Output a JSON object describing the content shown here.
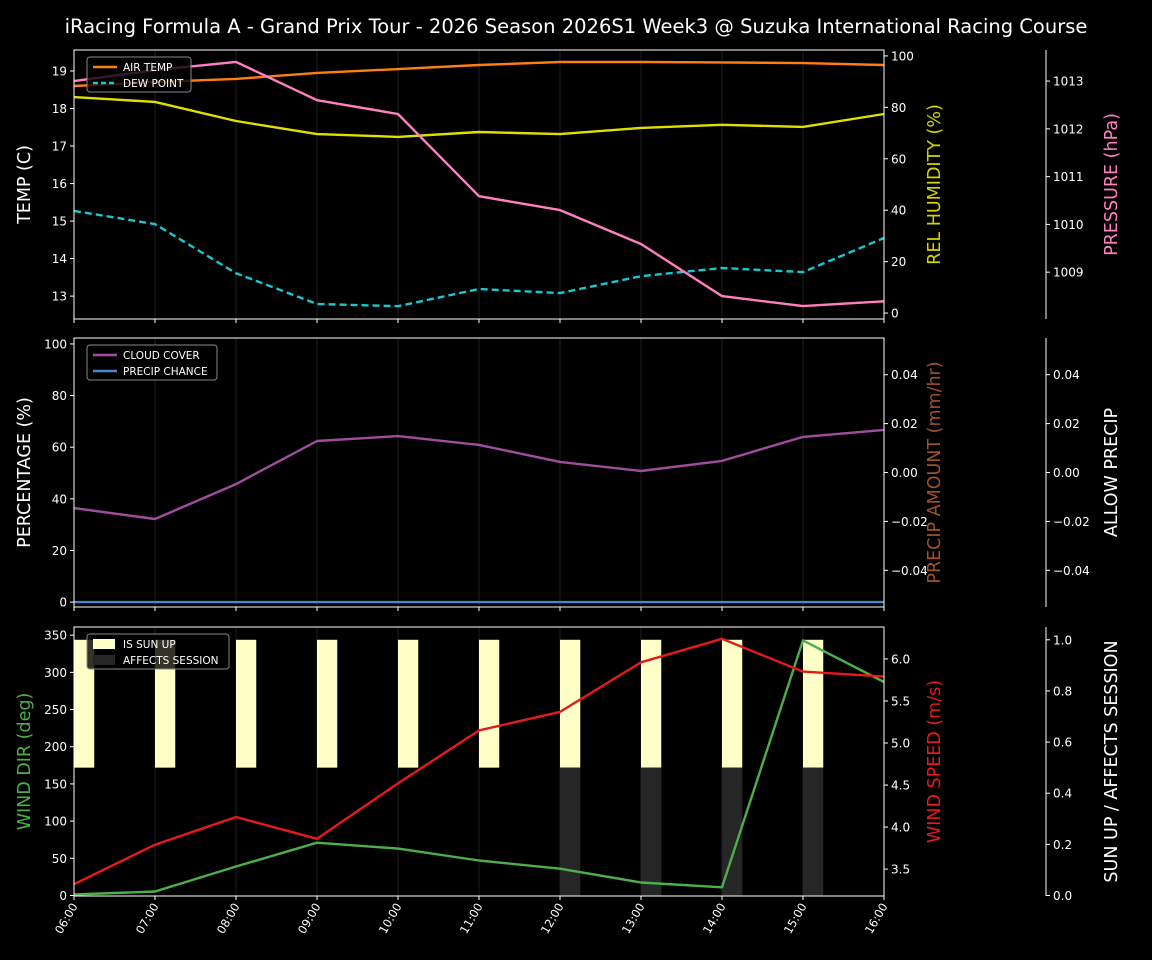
{
  "title": "iRacing Formula A - Grand Prix Tour - 2026 Season  2026S1 Week3 @ Suzuka International Racing Course",
  "chart_data": [
    {
      "type": "line",
      "x": [
        "06:00",
        "07:00",
        "08:00",
        "09:00",
        "10:00",
        "11:00",
        "12:00",
        "13:00",
        "14:00",
        "15:00",
        "16:00"
      ],
      "grid": "vertical",
      "legend": "top-left",
      "axes": {
        "left": {
          "label": "TEMP (C)",
          "ticks": [
            13,
            14,
            15,
            16,
            17,
            18,
            19
          ],
          "ylim": [
            12.39,
            19.56
          ],
          "color": "#ffffff"
        },
        "right": {
          "label": "REL HUMIDITY (%)",
          "ticks": [
            0,
            20,
            40,
            60,
            80,
            100
          ],
          "ylim": [
            -2.3,
            102.3
          ],
          "color": "#d4d400"
        },
        "right2": {
          "label": "PRESSURE (hPa)",
          "ticks": [
            1009,
            1010,
            1011,
            1012,
            1013
          ],
          "ylim": [
            1008.02,
            1013.65
          ],
          "color": "#ff80c0"
        }
      },
      "series": [
        {
          "name": "AIR TEMP",
          "axis": "left",
          "color": "#ff7f0e",
          "dash": false,
          "legend": true,
          "values": [
            18.6,
            18.71,
            18.79,
            18.95,
            19.05,
            19.16,
            19.24,
            19.24,
            19.23,
            19.21,
            19.16
          ]
        },
        {
          "name": "DEW POINT",
          "axis": "left",
          "color": "#17c8d0",
          "dash": true,
          "legend": true,
          "values": [
            15.27,
            14.92,
            13.61,
            12.79,
            12.73,
            13.19,
            13.08,
            13.53,
            13.75,
            13.64,
            14.55
          ]
        },
        {
          "axis": "right",
          "color": "#e0e000",
          "dash": false,
          "legend": false,
          "values": [
            84.0,
            82.1,
            74.7,
            69.6,
            68.5,
            70.4,
            69.6,
            72.0,
            73.2,
            72.4,
            77.4
          ]
        },
        {
          "axis": "right2",
          "color": "#ff80c0",
          "dash": false,
          "legend": false,
          "values": [
            1013.0,
            1013.23,
            1013.4,
            1012.6,
            1012.31,
            1010.59,
            1010.3,
            1009.59,
            1008.5,
            1008.29,
            1008.39
          ]
        }
      ]
    },
    {
      "type": "line",
      "x": [
        "06:00",
        "07:00",
        "08:00",
        "09:00",
        "10:00",
        "11:00",
        "12:00",
        "13:00",
        "14:00",
        "15:00",
        "16:00"
      ],
      "grid": "vertical",
      "legend": "top-left",
      "axes": {
        "left": {
          "label": "PERCENTAGE (%)",
          "ticks": [
            0,
            20,
            40,
            60,
            80,
            100
          ],
          "ylim": [
            -1.9,
            102.3
          ],
          "color": "#ffffff"
        },
        "right": {
          "label": "PRECIP AMOUNT (mm/hr)",
          "ticks": [
            -0.04,
            -0.02,
            0.0,
            0.02,
            0.04
          ],
          "ylim": [
            -0.055,
            0.055
          ],
          "color": "#a0522d"
        },
        "right2": {
          "label": "ALLOW PRECIP",
          "ticks": [
            -0.04,
            -0.02,
            0.0,
            0.02,
            0.04
          ],
          "ylim": [
            -0.055,
            0.055
          ],
          "color": "#ffffff"
        }
      },
      "series": [
        {
          "name": "CLOUD COVER",
          "axis": "left",
          "color": "#a04da0",
          "dash": false,
          "legend": true,
          "values": [
            36.4,
            32.2,
            45.7,
            62.4,
            64.3,
            60.9,
            54.3,
            50.8,
            54.7,
            64.0,
            66.7
          ]
        },
        {
          "name": "PRECIP CHANCE",
          "axis": "left",
          "color": "#4a86c8",
          "dash": false,
          "legend": true,
          "values": [
            0,
            0,
            0,
            0,
            0,
            0,
            0,
            0,
            0,
            0,
            0
          ]
        }
      ]
    },
    {
      "type": "line",
      "x": [
        "06:00",
        "07:00",
        "08:00",
        "09:00",
        "10:00",
        "11:00",
        "12:00",
        "13:00",
        "14:00",
        "15:00",
        "16:00"
      ],
      "grid": "vertical",
      "legend": "top-left",
      "axes": {
        "left": {
          "label": "WIND DIR (deg)",
          "ticks": [
            0,
            50,
            100,
            150,
            200,
            250,
            300,
            350
          ],
          "ylim": [
            -0.7,
            361
          ],
          "color": "#4daf4a"
        },
        "right": {
          "label": "WIND SPEED (m/s)",
          "ticks": [
            3.5,
            4.0,
            4.5,
            5.0,
            5.5,
            6.0
          ],
          "ylim": [
            3.18,
            6.38
          ],
          "color": "#e41a1c"
        },
        "right2": {
          "label": "SUN UP / AFFECTS SESSION",
          "ticks": [
            0.0,
            0.2,
            0.4,
            0.6,
            0.8,
            1.0
          ],
          "ylim": [
            -0.002,
            1.05
          ],
          "color": "#ffffff"
        }
      },
      "bars": [
        {
          "name": "IS SUN UP",
          "color": "#ffffc8",
          "base": 0.5,
          "values": [
            1,
            1,
            1,
            1,
            1,
            1,
            1,
            1,
            1,
            1,
            0
          ]
        },
        {
          "name": "AFFECTS SESSION",
          "color": "#262626",
          "base": 0,
          "values": [
            0,
            0,
            0,
            0,
            0,
            0,
            0.5,
            0.5,
            0.5,
            0.5,
            0
          ]
        }
      ],
      "series": [
        {
          "axis": "left",
          "color": "#4daf4a",
          "dash": false,
          "legend": false,
          "values": [
            1.3,
            5.4,
            39,
            71,
            63,
            47,
            36,
            17.5,
            11,
            343,
            287
          ]
        },
        {
          "axis": "right",
          "color": "#e41a1c",
          "dash": false,
          "legend": false,
          "values": [
            3.32,
            3.79,
            4.12,
            3.86,
            4.52,
            5.15,
            5.37,
            5.96,
            6.24,
            5.85,
            5.79
          ]
        }
      ]
    }
  ]
}
